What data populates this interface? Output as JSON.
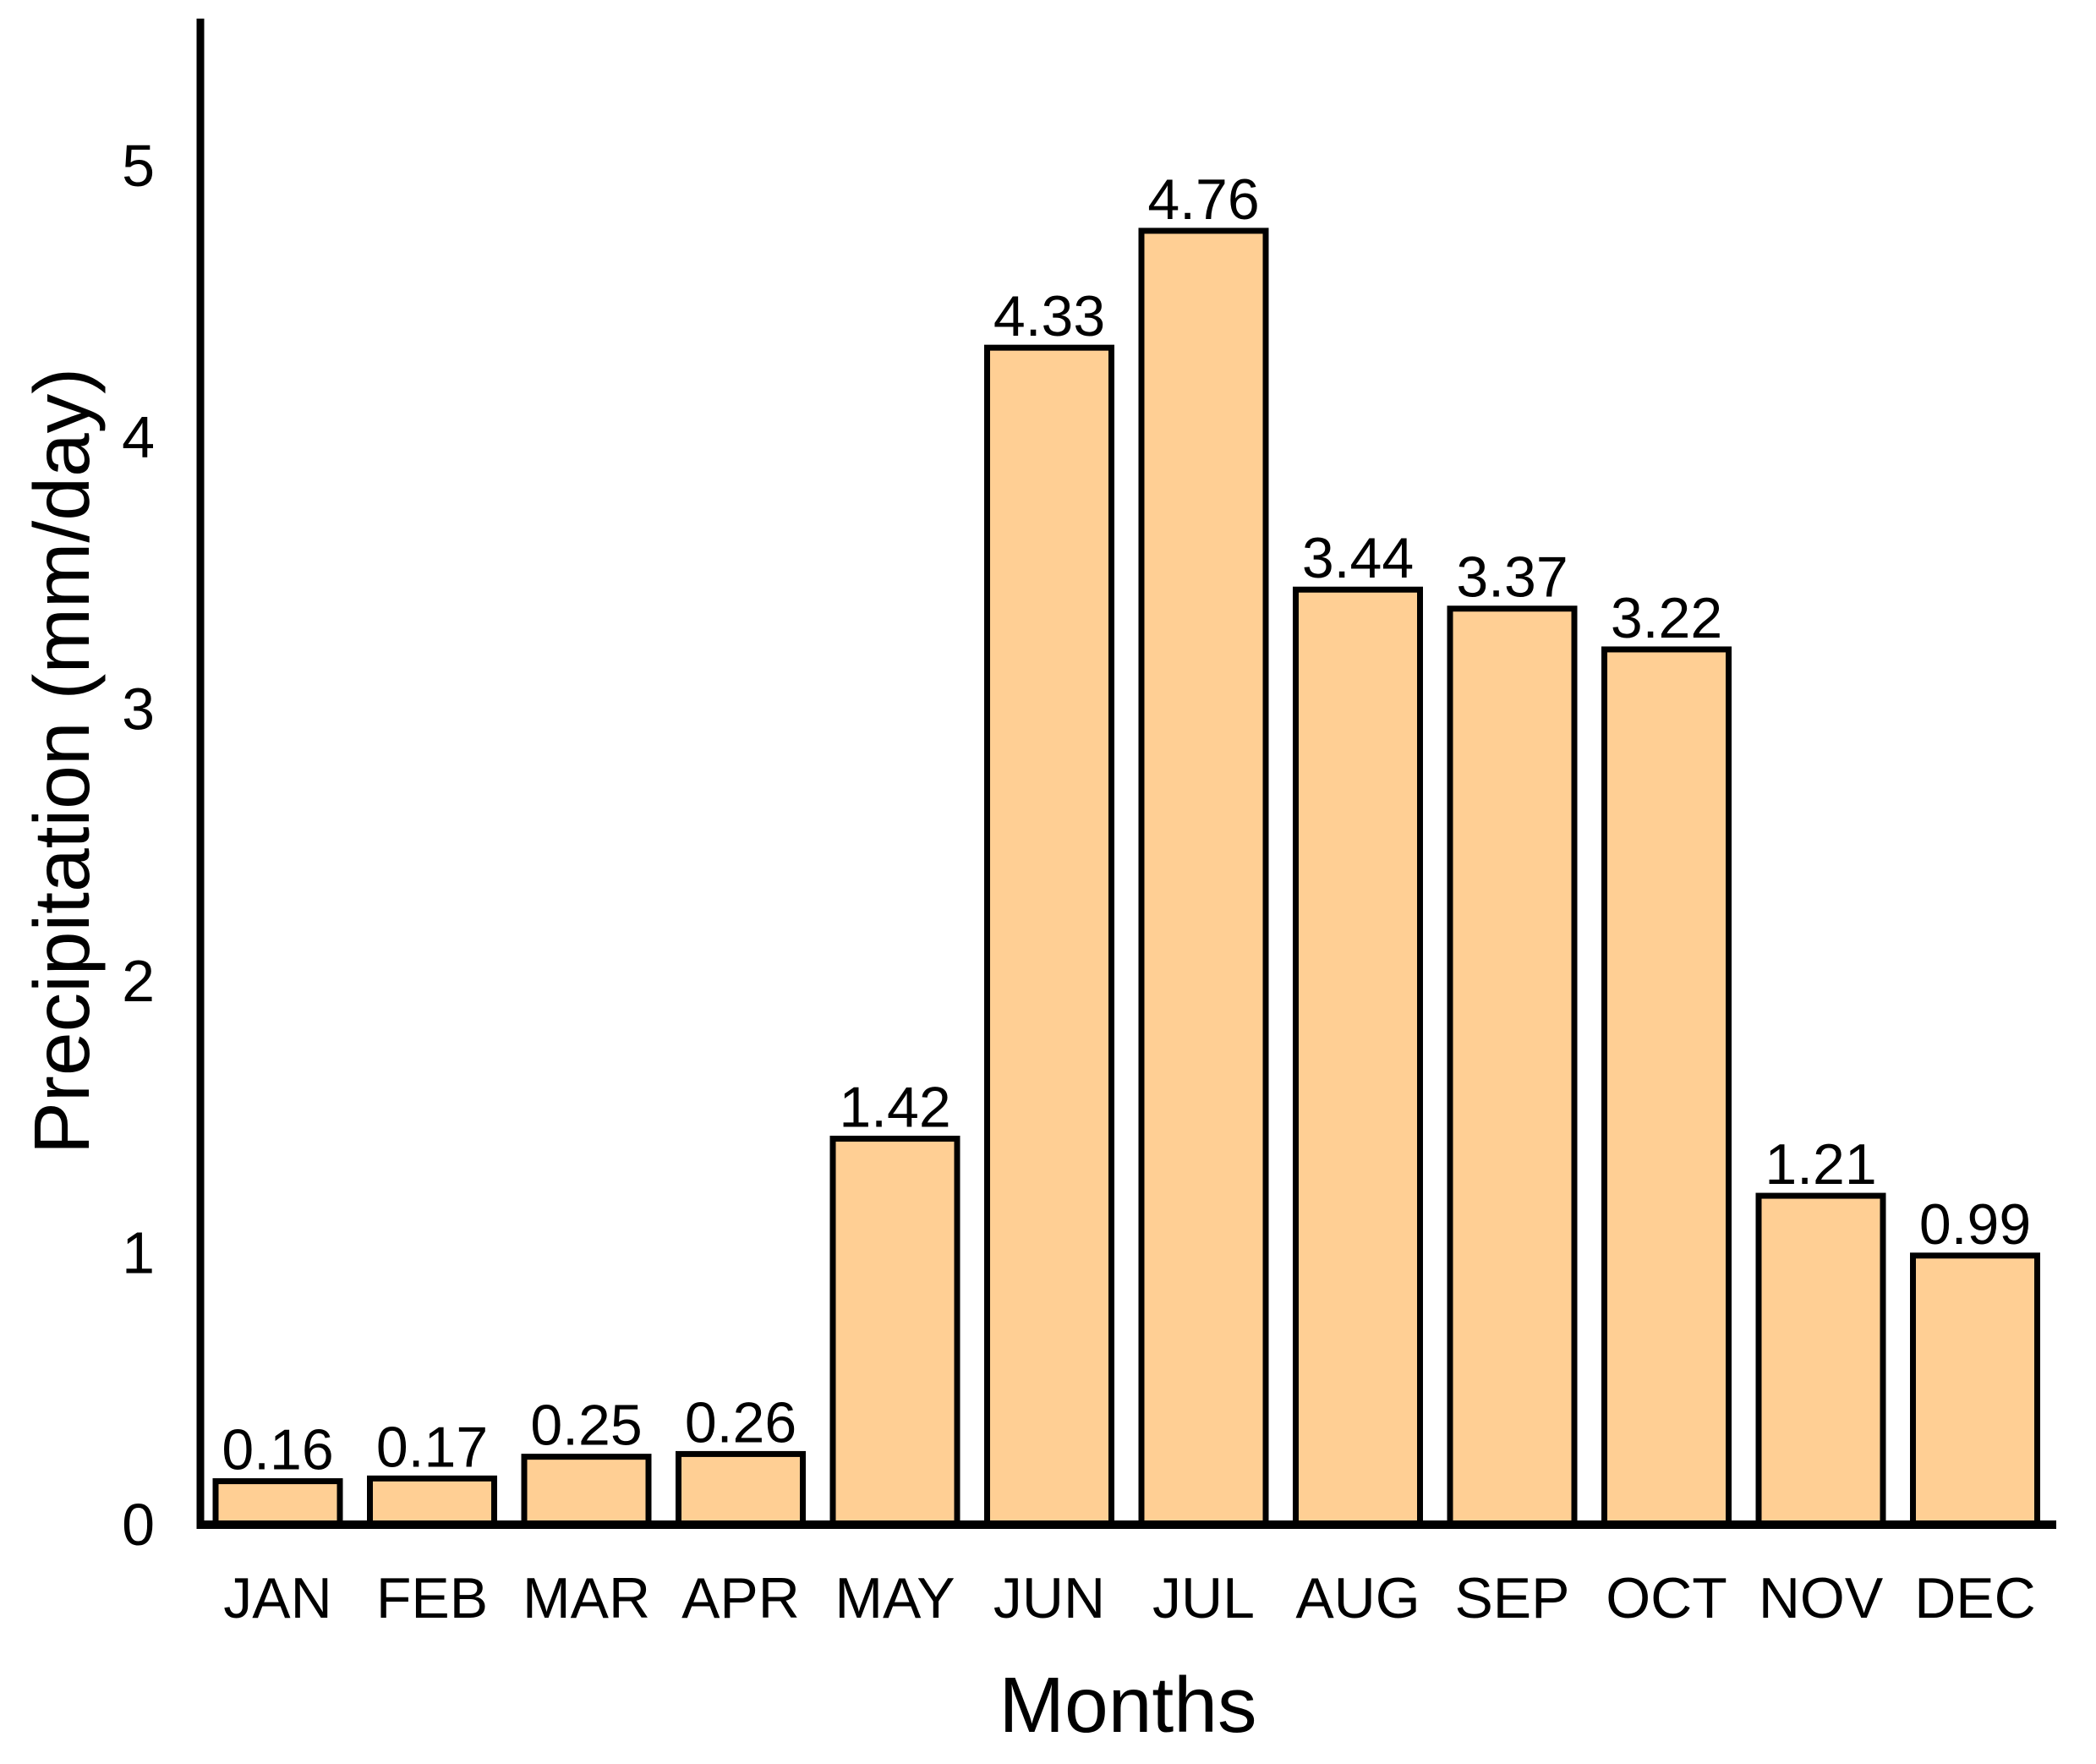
{
  "chart_data": {
    "type": "bar",
    "title": "",
    "categories": [
      "JAN",
      "FEB",
      "MAR",
      "APR",
      "MAY",
      "JUN",
      "JUL",
      "AUG",
      "SEP",
      "OCT",
      "NOV",
      "DEC"
    ],
    "values": [
      0.16,
      0.17,
      0.25,
      0.26,
      1.42,
      4.33,
      4.76,
      3.44,
      3.37,
      3.22,
      1.21,
      0.99
    ],
    "bar_value_labels": [
      "0.16",
      "0.17",
      "0.25",
      "0.26",
      "1.42",
      "4.33",
      "4.76",
      "3.44",
      "3.37",
      "3.22",
      "1.21",
      "0.99"
    ],
    "xlabel": "Months",
    "ylabel": "Precipitation (mm/day)",
    "yticks": [
      0,
      1,
      2,
      3,
      4,
      5
    ],
    "ytick_labels": [
      "0",
      "1",
      "2",
      "3",
      "4",
      "5"
    ],
    "ylim": [
      0,
      5.55
    ],
    "grid": false,
    "legend_position": "none",
    "bar_fill_color": "#FFCF94",
    "bar_border_color": "#000000",
    "axis_color": "#000000",
    "text_color": "#000000",
    "background_color": "#FFFFFF"
  }
}
